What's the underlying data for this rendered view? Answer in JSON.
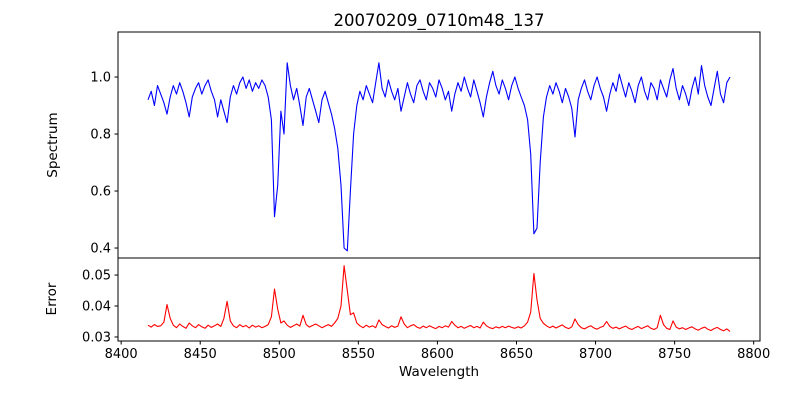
{
  "chart_data": {
    "type": "line",
    "title": "20070209_0710m48_137",
    "xlabel": "Wavelength",
    "x_start": 8417,
    "x_step": 2,
    "legend": "none",
    "grid": false,
    "subplots": [
      {
        "name": "spectrum",
        "ylabel": "Spectrum",
        "line_color": "#0000ff",
        "xlim": [
          8398,
          8804
        ],
        "ylim": [
          0.365,
          1.158
        ],
        "yticks": [
          1.0,
          0.8,
          0.6,
          0.4
        ],
        "ytick_labels": [
          "1.0",
          "0.8",
          "0.6",
          "0.4"
        ],
        "values": [
          0.92,
          0.95,
          0.9,
          0.97,
          0.94,
          0.91,
          0.87,
          0.93,
          0.97,
          0.94,
          0.98,
          0.95,
          0.91,
          0.86,
          0.93,
          0.96,
          0.98,
          0.94,
          0.97,
          0.99,
          0.95,
          0.92,
          0.86,
          0.92,
          0.88,
          0.84,
          0.93,
          0.97,
          0.94,
          0.98,
          1.0,
          0.96,
          0.99,
          0.95,
          0.98,
          0.96,
          0.99,
          0.97,
          0.93,
          0.85,
          0.51,
          0.62,
          0.88,
          0.8,
          1.05,
          0.97,
          0.92,
          0.96,
          0.9,
          0.83,
          0.93,
          0.96,
          0.92,
          0.88,
          0.84,
          0.92,
          0.95,
          0.91,
          0.87,
          0.82,
          0.75,
          0.62,
          0.4,
          0.39,
          0.6,
          0.8,
          0.9,
          0.95,
          0.92,
          0.97,
          0.94,
          0.91,
          0.98,
          1.05,
          0.96,
          0.93,
          0.99,
          0.95,
          0.92,
          0.96,
          0.88,
          0.93,
          0.98,
          0.94,
          0.91,
          0.97,
          0.99,
          0.95,
          0.92,
          0.98,
          0.96,
          0.93,
          0.99,
          0.96,
          0.92,
          0.95,
          0.88,
          0.94,
          0.98,
          0.95,
          1.0,
          0.96,
          0.93,
          0.99,
          0.95,
          0.91,
          0.86,
          0.93,
          0.98,
          1.02,
          0.97,
          0.94,
          0.99,
          0.96,
          0.92,
          0.97,
          1.0,
          0.96,
          0.93,
          0.9,
          0.85,
          0.73,
          0.45,
          0.47,
          0.7,
          0.86,
          0.93,
          0.97,
          0.94,
          0.98,
          0.95,
          0.91,
          0.96,
          0.93,
          0.89,
          0.79,
          0.92,
          0.96,
          0.99,
          0.95,
          0.92,
          0.97,
          1.0,
          0.96,
          0.93,
          0.88,
          0.94,
          0.98,
          0.95,
          1.01,
          0.97,
          0.93,
          0.98,
          0.95,
          0.91,
          0.97,
          1.0,
          0.95,
          0.92,
          0.98,
          0.96,
          0.92,
          0.99,
          0.96,
          0.93,
          0.99,
          1.03,
          0.96,
          0.92,
          0.97,
          0.94,
          0.9,
          0.96,
          1.0,
          0.94,
          1.04,
          0.97,
          0.93,
          0.9,
          0.96,
          1.02,
          0.94,
          0.91,
          0.98,
          1.0
        ]
      },
      {
        "name": "error",
        "ylabel": "Error",
        "line_color": "#ff0000",
        "xlim": [
          8398,
          8804
        ],
        "ylim": [
          0.0287,
          0.0555
        ],
        "yticks": [
          0.05,
          0.04,
          0.03
        ],
        "ytick_labels": [
          "0.05",
          "0.04",
          "0.03"
        ],
        "xticks": [
          8400,
          8450,
          8500,
          8550,
          8600,
          8650,
          8700,
          8750,
          8800
        ],
        "xtick_labels": [
          "8400",
          "8450",
          "8500",
          "8550",
          "8600",
          "8650",
          "8700",
          "8750",
          "8800"
        ],
        "values": [
          0.0338,
          0.0332,
          0.034,
          0.0334,
          0.0336,
          0.0348,
          0.0405,
          0.036,
          0.0338,
          0.033,
          0.0342,
          0.0334,
          0.0328,
          0.0345,
          0.0336,
          0.033,
          0.034,
          0.0333,
          0.0328,
          0.0338,
          0.0331,
          0.0336,
          0.0342,
          0.0334,
          0.036,
          0.0415,
          0.0352,
          0.0336,
          0.033,
          0.034,
          0.0333,
          0.0337,
          0.0329,
          0.0338,
          0.0332,
          0.0336,
          0.033,
          0.0334,
          0.034,
          0.0365,
          0.0455,
          0.039,
          0.0345,
          0.0352,
          0.0338,
          0.0331,
          0.0336,
          0.0342,
          0.0335,
          0.037,
          0.034,
          0.0332,
          0.0337,
          0.0342,
          0.0336,
          0.033,
          0.0335,
          0.034,
          0.0334,
          0.0345,
          0.036,
          0.04,
          0.053,
          0.045,
          0.0372,
          0.0378,
          0.0345,
          0.0336,
          0.033,
          0.0338,
          0.0332,
          0.0336,
          0.033,
          0.0355,
          0.034,
          0.0334,
          0.0329,
          0.0336,
          0.0331,
          0.0335,
          0.0365,
          0.0342,
          0.033,
          0.0336,
          0.034,
          0.0332,
          0.0328,
          0.0335,
          0.033,
          0.0336,
          0.0331,
          0.0327,
          0.0334,
          0.033,
          0.0336,
          0.0332,
          0.035,
          0.0338,
          0.033,
          0.0334,
          0.0328,
          0.0333,
          0.0337,
          0.033,
          0.0334,
          0.0329,
          0.0348,
          0.0336,
          0.033,
          0.0327,
          0.0333,
          0.0329,
          0.0334,
          0.033,
          0.0335,
          0.0331,
          0.0328,
          0.0333,
          0.0329,
          0.0336,
          0.0348,
          0.038,
          0.0505,
          0.042,
          0.036,
          0.0344,
          0.0336,
          0.033,
          0.0335,
          0.0329,
          0.0334,
          0.0339,
          0.0331,
          0.0327,
          0.0333,
          0.0358,
          0.034,
          0.033,
          0.0326,
          0.0332,
          0.0336,
          0.0329,
          0.0325,
          0.0331,
          0.0335,
          0.035,
          0.0334,
          0.0328,
          0.0332,
          0.0326,
          0.0331,
          0.0335,
          0.0328,
          0.0324,
          0.033,
          0.0334,
          0.0327,
          0.0332,
          0.0336,
          0.0328,
          0.0324,
          0.033,
          0.037,
          0.034,
          0.0328,
          0.0324,
          0.0352,
          0.0332,
          0.0326,
          0.033,
          0.0324,
          0.0329,
          0.0333,
          0.0326,
          0.0322,
          0.0328,
          0.0332,
          0.0325,
          0.0321,
          0.0327,
          0.0331,
          0.0324,
          0.032,
          0.0326,
          0.0318
        ]
      }
    ]
  }
}
